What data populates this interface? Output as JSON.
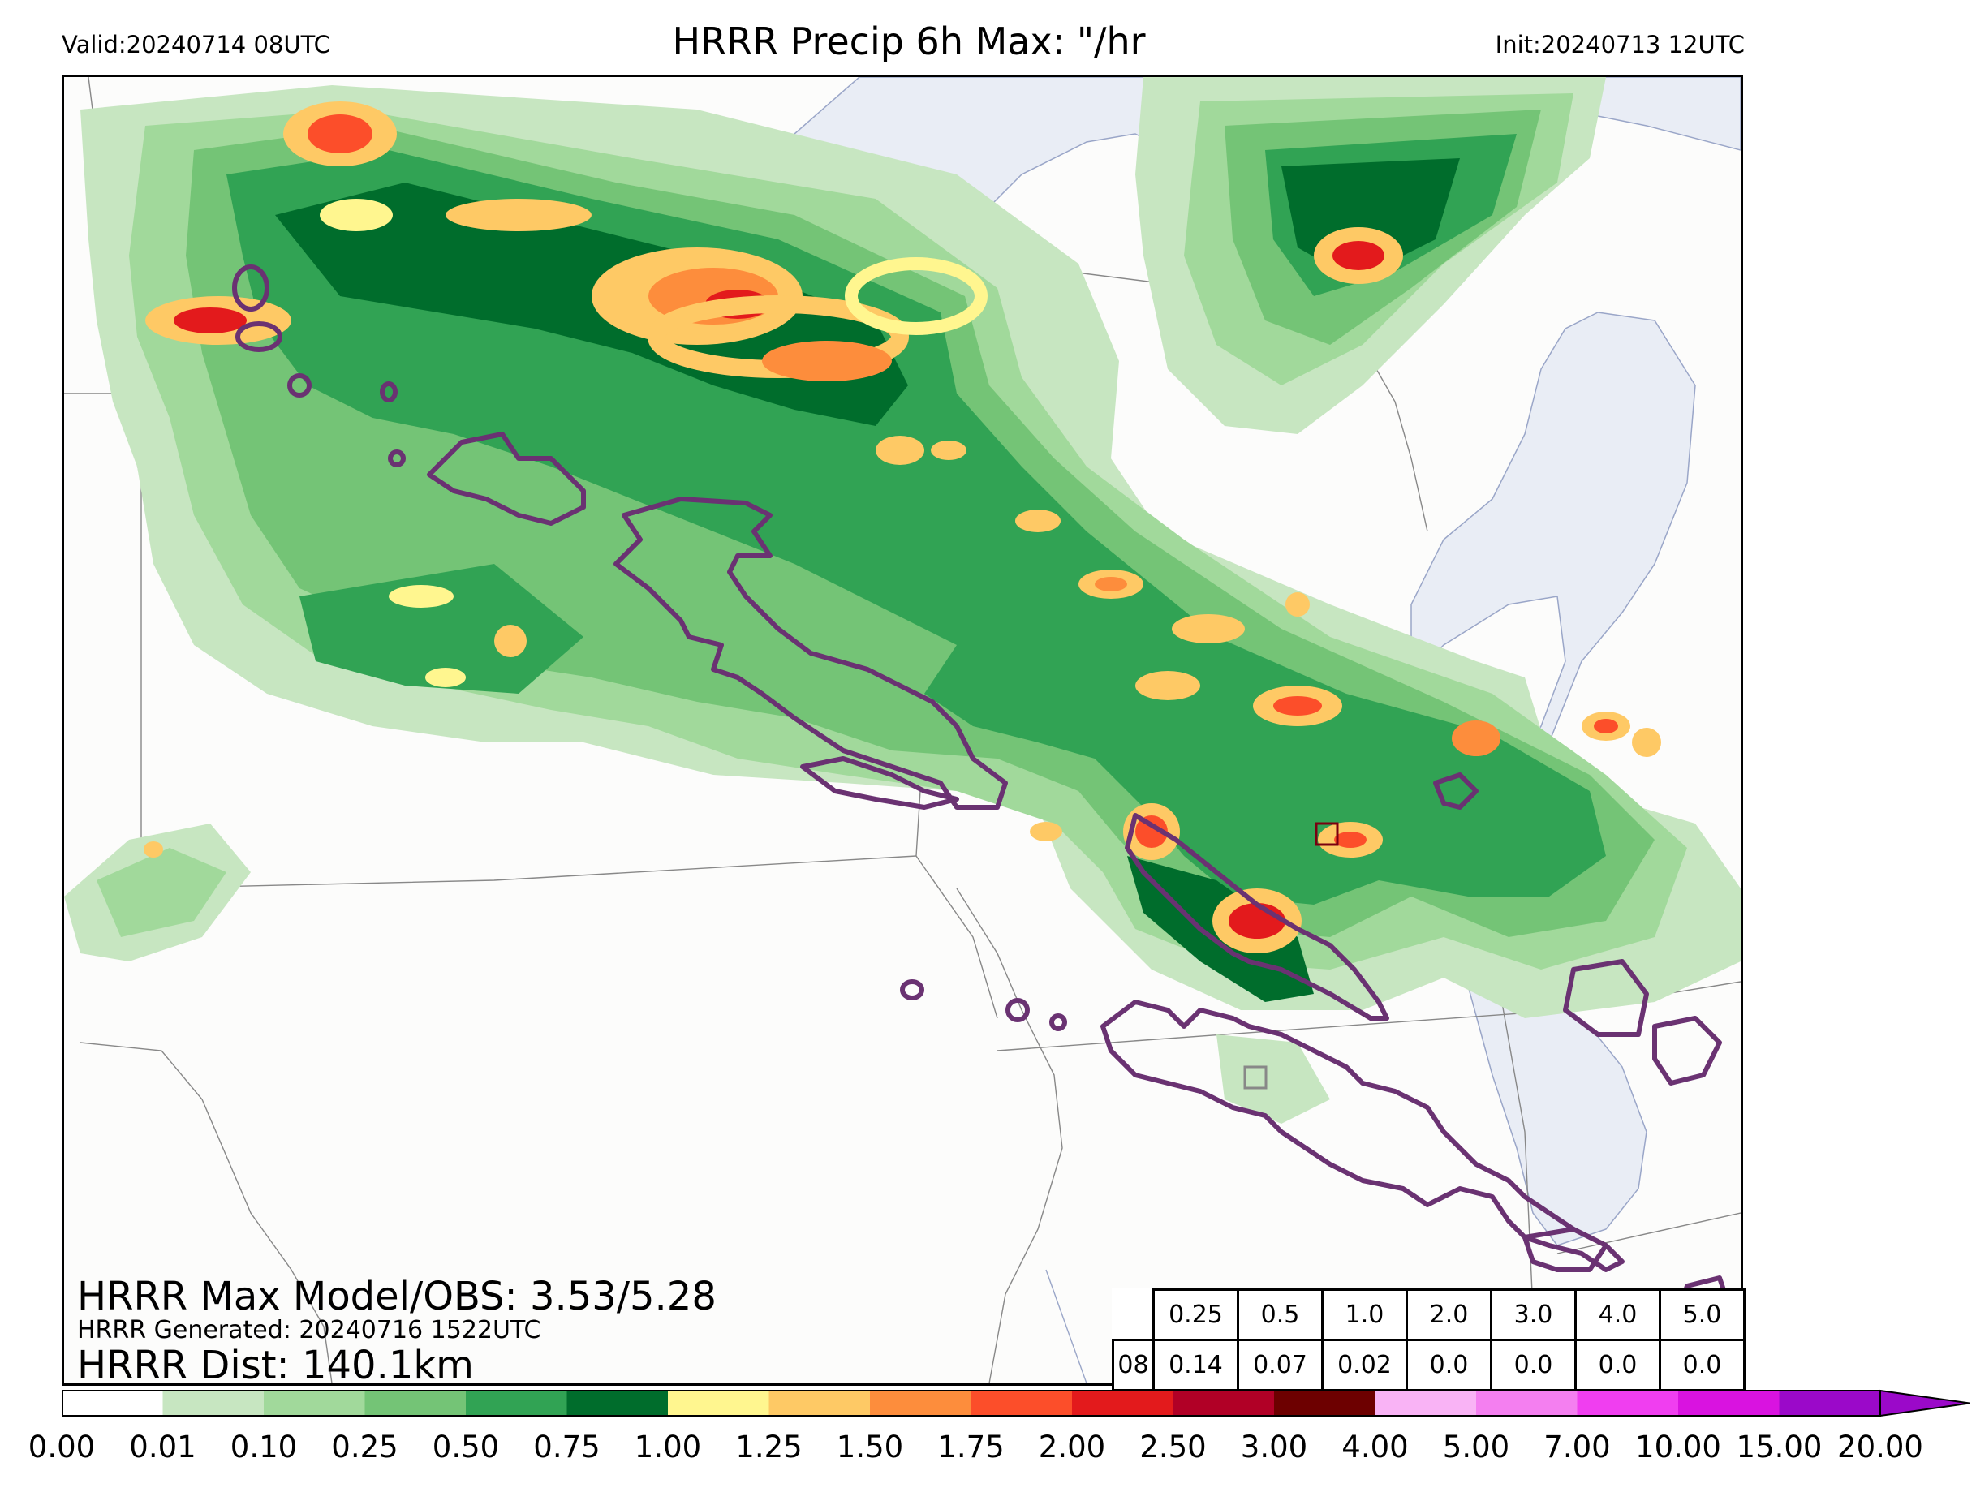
{
  "header": {
    "valid": "Valid:20240714 08UTC",
    "title": "HRRR Precip 6h Max: \"/hr",
    "init": "Init:20240713 12UTC"
  },
  "annotations": {
    "max_model_obs": "HRRR Max Model/OBS: 3.53/5.28",
    "generated": "HRRR Generated: 20240716 1522UTC",
    "distance": "HRRR Dist: 140.1km"
  },
  "stats_table": {
    "thresholds": [
      "0.25",
      "0.5",
      "1.0",
      "2.0",
      "3.0",
      "4.0",
      "5.0"
    ],
    "hour": "08",
    "values": [
      "0.14",
      "0.07",
      "0.02",
      "0.0",
      "0.0",
      "0.0",
      "0.0"
    ]
  },
  "colorbar": {
    "ticks": [
      "0.00",
      "0.01",
      "0.10",
      "0.25",
      "0.50",
      "0.75",
      "1.00",
      "1.25",
      "1.50",
      "1.75",
      "2.00",
      "2.50",
      "3.00",
      "4.00",
      "5.00",
      "7.00",
      "10.00",
      "15.00",
      "20.00"
    ],
    "colors": [
      "#ffffff",
      "#c7e6c1",
      "#a1d99b",
      "#74c476",
      "#31a354",
      "#006d2c",
      "#fff68f",
      "#fec965",
      "#fd8d3c",
      "#fc4e2a",
      "#e31a1c",
      "#b10026",
      "#6d0000",
      "#f9b3f5",
      "#f47ff0",
      "#f03ef0",
      "#d913e0",
      "#9b09c9"
    ],
    "extend": "max"
  },
  "map": {
    "lake_color": "#e9edf5",
    "observed_contour_color": "#6a3272",
    "observed_max_marker_color": "#7a0010",
    "model_max_marker_color": "#888888"
  }
}
